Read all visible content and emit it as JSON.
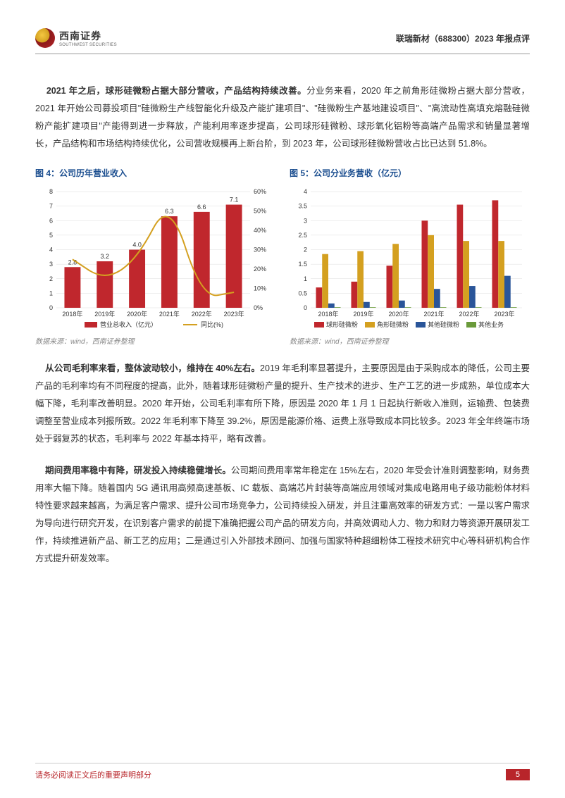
{
  "header": {
    "logo_cn": "西南证券",
    "logo_en": "SOUTHWEST SECURITIES",
    "right": "联瑞新材（688300）2023 年报点评"
  },
  "p1": {
    "bold": "2021 年之后，球形硅微粉占据大部分营收，产品结构持续改善。",
    "text": "分业务来看，2020 年之前角形硅微粉占据大部分营收，2021 年开始公司募投项目\"硅微粉生产线智能化升级及产能扩建项目\"、\"硅微粉生产基地建设项目\"、\"高流动性高填充熔融硅微粉产能扩建项目\"产能得到进一步释放，产能利用率逐步提高，公司球形硅微粉、球形氧化铝粉等高端产品需求和销量显著增长，产品结构和市场结构持续优化，公司营收规模再上新台阶，到 2023 年，公司球形硅微粉营收占比已达到 51.8%。"
  },
  "chart4": {
    "title": "图 4：公司历年营业收入",
    "source": "数据来源：wind，西南证券整理",
    "categories": [
      "2018年",
      "2019年",
      "2020年",
      "2021年",
      "2022年",
      "2023年"
    ],
    "bar_values": [
      2.8,
      3.2,
      4.0,
      6.3,
      6.6,
      7.1
    ],
    "line_values": [
      25,
      14,
      25,
      57,
      5,
      8
    ],
    "bar_color": "#c0272d",
    "line_color": "#d4a020",
    "y1_max": 8,
    "y1_step": 1,
    "y2_max": 60,
    "y2_step": 10,
    "legend": [
      "营业总收入（亿元）",
      "同比(%)"
    ],
    "label_fontsize": 9
  },
  "chart5": {
    "title": "图 5：公司分业务营收（亿元）",
    "source": "数据来源：wind，西南证券整理",
    "categories": [
      "2018年",
      "2019年",
      "2020年",
      "2021年",
      "2022年",
      "2023年"
    ],
    "series": [
      {
        "name": "球形硅微粉",
        "color": "#c0272d",
        "values": [
          0.7,
          0.9,
          1.45,
          3.0,
          3.55,
          3.7
        ]
      },
      {
        "name": "角形硅微粉",
        "color": "#d4a020",
        "values": [
          1.85,
          1.95,
          2.2,
          2.5,
          2.3,
          2.3
        ]
      },
      {
        "name": "其他硅微粉",
        "color": "#2a5599",
        "values": [
          0.15,
          0.2,
          0.25,
          0.65,
          0.75,
          1.1
        ]
      },
      {
        "name": "其他业务",
        "color": "#6a9a3a",
        "values": [
          0.02,
          0.02,
          0.02,
          0.02,
          0.02,
          0.02
        ]
      }
    ],
    "y_max": 4,
    "y_step": 0.5,
    "label_fontsize": 9
  },
  "p2": {
    "bold": "从公司毛利率来看，整体波动较小，维持在 40%左右。",
    "text": "2019 年毛利率显著提升，主要原因是由于采购成本的降低，公司主要产品的毛利率均有不同程度的提高，此外，随着球形硅微粉产量的提升、生产技术的进步、生产工艺的进一步成熟，单位成本大幅下降，毛利率改善明显。2020 年开始，公司毛利率有所下降，原因是 2020 年 1 月 1 日起执行新收入准则，运输费、包装费调整至营业成本列报所致。2022 年毛利率下降至 39.2%，原因是能源价格、运费上涨导致成本同比较多。2023 年全年终端市场处于弱复苏的状态，毛利率与 2022 年基本持平，略有改善。"
  },
  "p3": {
    "bold": "期间费用率稳中有降，研发投入持续稳健增长。",
    "text": "公司期间费用率常年稳定在 15%左右，2020 年受会计准则调整影响，财务费用率大幅下降。随着国内 5G 通讯用高频高速基板、IC 载板、高端芯片封装等高端应用领域对集成电路用电子级功能粉体材料特性要求越来越高，为满足客户需求、提升公司市场竞争力，公司持续投入研发，并且注重高效率的研发方式：一是以客户需求为导向进行研究开发，在识别客户需求的前提下准确把握公司产品的研发方向，并高效调动人力、物力和财力等资源开展研发工作，持续推进新产品、新工艺的应用；二是通过引入外部技术顾问、加强与国家特种超细粉体工程技术研究中心等科研机构合作方式提升研发效率。"
  },
  "footer": {
    "text": "请务必阅读正文后的重要声明部分",
    "page": "5"
  }
}
